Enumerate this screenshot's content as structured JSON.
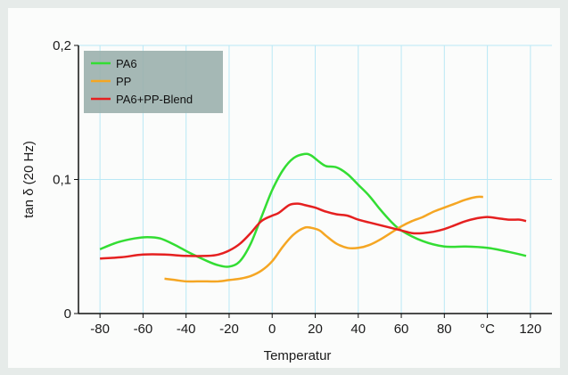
{
  "chart_data": {
    "type": "line",
    "xlabel": "Temperatur",
    "ylabel": "tan δ (20 Hz)",
    "xlim": [
      -90,
      130
    ],
    "ylim": [
      0,
      0.2
    ],
    "x_ticks": [
      {
        "value": -80,
        "label": "-80"
      },
      {
        "value": -60,
        "label": "-60"
      },
      {
        "value": -40,
        "label": "-40"
      },
      {
        "value": -20,
        "label": "-20"
      },
      {
        "value": 0,
        "label": "0"
      },
      {
        "value": 20,
        "label": "20"
      },
      {
        "value": 40,
        "label": "40"
      },
      {
        "value": 60,
        "label": "60"
      },
      {
        "value": 80,
        "label": "80"
      },
      {
        "value": 100,
        "label": "°C"
      },
      {
        "value": 120,
        "label": "120"
      }
    ],
    "y_ticks": [
      {
        "value": 0,
        "label": "0"
      },
      {
        "value": 0.1,
        "label": "0,1"
      },
      {
        "value": 0.2,
        "label": "0,2"
      }
    ],
    "grid": true,
    "legend_position": "top-left",
    "series": [
      {
        "name": "PA6",
        "color": "#33dd33",
        "x": [
          -80,
          -72,
          -64,
          -58,
          -52,
          -45,
          -38,
          -30,
          -25,
          -20,
          -15,
          -10,
          -5,
          0,
          5,
          10,
          15,
          18,
          22,
          25,
          30,
          35,
          40,
          45,
          50,
          55,
          60,
          70,
          80,
          90,
          100,
          110,
          118
        ],
        "y": [
          0.048,
          0.053,
          0.056,
          0.057,
          0.056,
          0.051,
          0.045,
          0.039,
          0.036,
          0.035,
          0.039,
          0.052,
          0.072,
          0.092,
          0.107,
          0.116,
          0.119,
          0.118,
          0.113,
          0.11,
          0.109,
          0.104,
          0.096,
          0.088,
          0.078,
          0.069,
          0.062,
          0.054,
          0.05,
          0.05,
          0.049,
          0.046,
          0.043
        ]
      },
      {
        "name": "PP",
        "color": "#f5a623",
        "x": [
          -50,
          -45,
          -40,
          -35,
          -30,
          -25,
          -20,
          -15,
          -10,
          -5,
          0,
          5,
          10,
          15,
          18,
          22,
          25,
          30,
          35,
          40,
          45,
          50,
          55,
          60,
          65,
          70,
          75,
          80,
          85,
          90,
          95,
          98
        ],
        "y": [
          0.026,
          0.025,
          0.024,
          0.024,
          0.024,
          0.024,
          0.025,
          0.026,
          0.028,
          0.032,
          0.039,
          0.05,
          0.059,
          0.064,
          0.064,
          0.062,
          0.058,
          0.052,
          0.049,
          0.049,
          0.051,
          0.055,
          0.06,
          0.065,
          0.069,
          0.072,
          0.076,
          0.079,
          0.082,
          0.085,
          0.087,
          0.087
        ]
      },
      {
        "name": "PA6+PP-Blend",
        "color": "#e52020",
        "x": [
          -80,
          -70,
          -60,
          -50,
          -40,
          -30,
          -25,
          -20,
          -15,
          -10,
          -5,
          0,
          3,
          8,
          12,
          15,
          20,
          25,
          30,
          35,
          40,
          45,
          50,
          55,
          60,
          65,
          70,
          75,
          80,
          85,
          90,
          95,
          100,
          105,
          110,
          115,
          118
        ],
        "y": [
          0.041,
          0.042,
          0.044,
          0.044,
          0.043,
          0.043,
          0.044,
          0.047,
          0.052,
          0.06,
          0.069,
          0.073,
          0.075,
          0.081,
          0.082,
          0.081,
          0.079,
          0.076,
          0.074,
          0.073,
          0.07,
          0.068,
          0.066,
          0.064,
          0.062,
          0.06,
          0.06,
          0.061,
          0.063,
          0.066,
          0.069,
          0.071,
          0.072,
          0.071,
          0.07,
          0.07,
          0.069
        ]
      }
    ]
  }
}
